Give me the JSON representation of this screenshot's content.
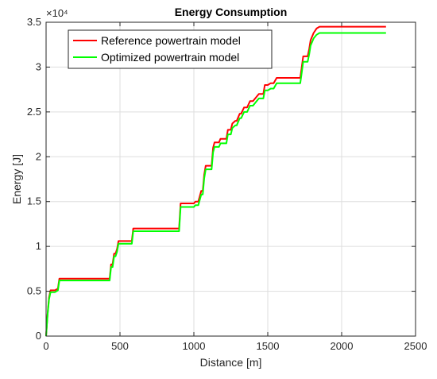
{
  "chart_data": {
    "type": "line",
    "title": "Energy Consumption",
    "xlabel": "Distance [m]",
    "ylabel": "Energy [J]",
    "y_exponent": "×10⁴",
    "xlim": [
      0,
      2500
    ],
    "ylim": [
      0,
      3.5
    ],
    "xticks": [
      0,
      500,
      1000,
      1500,
      2000,
      2500
    ],
    "yticks": [
      0,
      0.5,
      1,
      1.5,
      2,
      2.5,
      3,
      3.5
    ],
    "grid": true,
    "legend_position": "top-left",
    "series": [
      {
        "name": "Reference powertrain model",
        "color": "#ff0000",
        "x": [
          0,
          10,
          20,
          30,
          40,
          60,
          80,
          90,
          100,
          430,
          440,
          450,
          460,
          470,
          480,
          490,
          500,
          580,
          590,
          600,
          900,
          910,
          1000,
          1010,
          1030,
          1050,
          1060,
          1070,
          1080,
          1120,
          1130,
          1140,
          1170,
          1180,
          1220,
          1230,
          1250,
          1260,
          1280,
          1290,
          1310,
          1320,
          1340,
          1360,
          1380,
          1400,
          1420,
          1440,
          1470,
          1480,
          1500,
          1520,
          1540,
          1560,
          1570,
          1720,
          1730,
          1740,
          1770,
          1780,
          1790,
          1810,
          1830,
          1850,
          2300
        ],
        "y": [
          0,
          0.25,
          0.43,
          0.51,
          0.51,
          0.51,
          0.53,
          0.64,
          0.64,
          0.64,
          0.8,
          0.8,
          0.92,
          0.92,
          0.97,
          1.06,
          1.06,
          1.06,
          1.2,
          1.2,
          1.2,
          1.48,
          1.48,
          1.5,
          1.5,
          1.62,
          1.62,
          1.8,
          1.9,
          1.9,
          2.1,
          2.16,
          2.16,
          2.2,
          2.2,
          2.3,
          2.3,
          2.37,
          2.4,
          2.4,
          2.48,
          2.48,
          2.55,
          2.55,
          2.62,
          2.62,
          2.66,
          2.7,
          2.7,
          2.8,
          2.8,
          2.82,
          2.82,
          2.88,
          2.88,
          2.88,
          3.0,
          3.12,
          3.12,
          3.2,
          3.3,
          3.38,
          3.43,
          3.45,
          3.45
        ]
      },
      {
        "name": "Optimized powertrain model",
        "color": "#00ff00",
        "x": [
          0,
          10,
          20,
          30,
          40,
          60,
          80,
          90,
          100,
          430,
          440,
          450,
          460,
          470,
          480,
          490,
          500,
          580,
          590,
          600,
          900,
          910,
          1000,
          1010,
          1030,
          1050,
          1060,
          1070,
          1080,
          1120,
          1130,
          1140,
          1170,
          1180,
          1220,
          1230,
          1250,
          1260,
          1280,
          1290,
          1310,
          1320,
          1340,
          1360,
          1380,
          1400,
          1420,
          1440,
          1470,
          1480,
          1500,
          1520,
          1540,
          1560,
          1570,
          1720,
          1730,
          1740,
          1770,
          1780,
          1790,
          1810,
          1830,
          1850,
          2300
        ],
        "y": [
          0,
          0.24,
          0.41,
          0.49,
          0.49,
          0.49,
          0.51,
          0.62,
          0.62,
          0.62,
          0.77,
          0.77,
          0.89,
          0.89,
          0.94,
          1.03,
          1.03,
          1.03,
          1.17,
          1.17,
          1.17,
          1.44,
          1.44,
          1.46,
          1.46,
          1.58,
          1.58,
          1.76,
          1.86,
          1.86,
          2.05,
          2.11,
          2.11,
          2.15,
          2.15,
          2.25,
          2.25,
          2.32,
          2.35,
          2.35,
          2.43,
          2.43,
          2.5,
          2.5,
          2.57,
          2.57,
          2.61,
          2.65,
          2.65,
          2.74,
          2.74,
          2.76,
          2.76,
          2.82,
          2.82,
          2.82,
          2.94,
          3.06,
          3.06,
          3.14,
          3.24,
          3.32,
          3.36,
          3.38,
          3.38
        ]
      }
    ]
  }
}
